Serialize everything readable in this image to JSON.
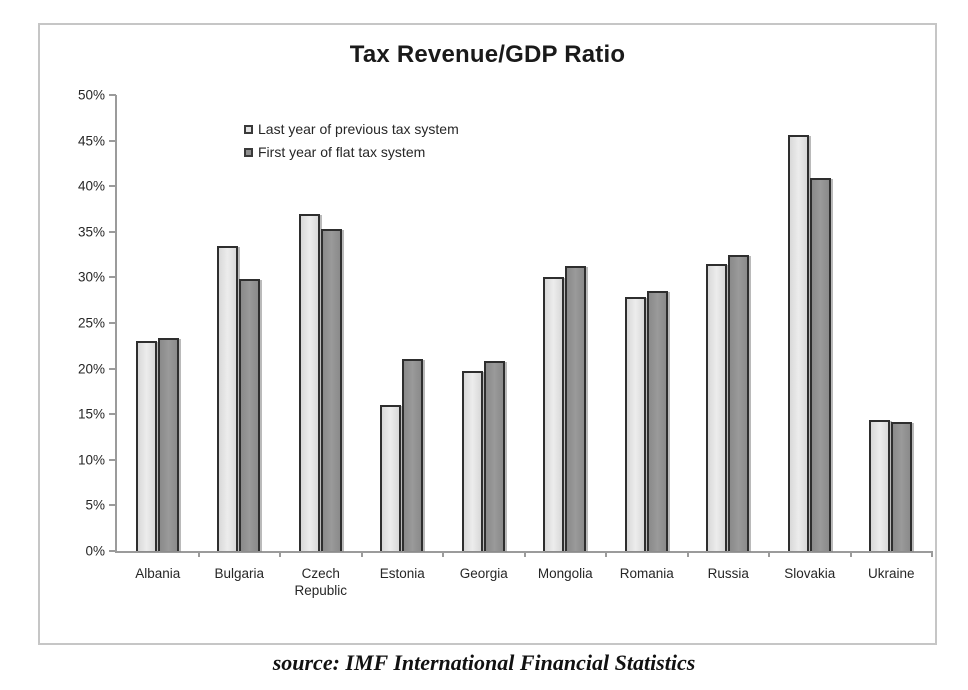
{
  "title": "Tax Revenue/GDP Ratio",
  "source_caption": "source: IMF International Financial Statistics",
  "colors": {
    "series_light": "#e2e2e2",
    "series_dark": "#939393",
    "bar_outline": "#2e2e2e",
    "axis": "#9b9b9b",
    "frame_border": "#c6c6c6"
  },
  "legend": {
    "items": [
      {
        "label": "Last year of previous tax system",
        "swatch": "light-square-icon"
      },
      {
        "label": "First year of flat tax system",
        "swatch": "dark-square-icon"
      }
    ]
  },
  "y_axis": {
    "tick_labels": [
      "0%",
      "5%",
      "10%",
      "15%",
      "20%",
      "25%",
      "30%",
      "35%",
      "40%",
      "45%",
      "50%"
    ]
  },
  "chart_data": {
    "type": "bar",
    "title": "Tax Revenue/GDP Ratio",
    "xlabel": "",
    "ylabel": "",
    "ylim": [
      0,
      50
    ],
    "y_tick_step": 5,
    "y_unit": "%",
    "grid": false,
    "legend_position": "upper-left-inside",
    "categories": [
      "Albania",
      "Bulgaria",
      "Czech Republic",
      "Estonia",
      "Georgia",
      "Mongolia",
      "Romania",
      "Russia",
      "Slovakia",
      "Ukraine"
    ],
    "series": [
      {
        "name": "Last year of previous tax system",
        "color": "#e2e2e2",
        "values": [
          23.0,
          33.4,
          37.0,
          16.0,
          19.7,
          30.0,
          27.8,
          31.5,
          45.6,
          14.4
        ]
      },
      {
        "name": "First year of flat tax system",
        "color": "#939393",
        "values": [
          23.4,
          29.8,
          35.3,
          21.1,
          20.8,
          31.3,
          28.5,
          32.5,
          40.9,
          14.1
        ]
      }
    ],
    "caption": "source: IMF International Financial Statistics"
  }
}
